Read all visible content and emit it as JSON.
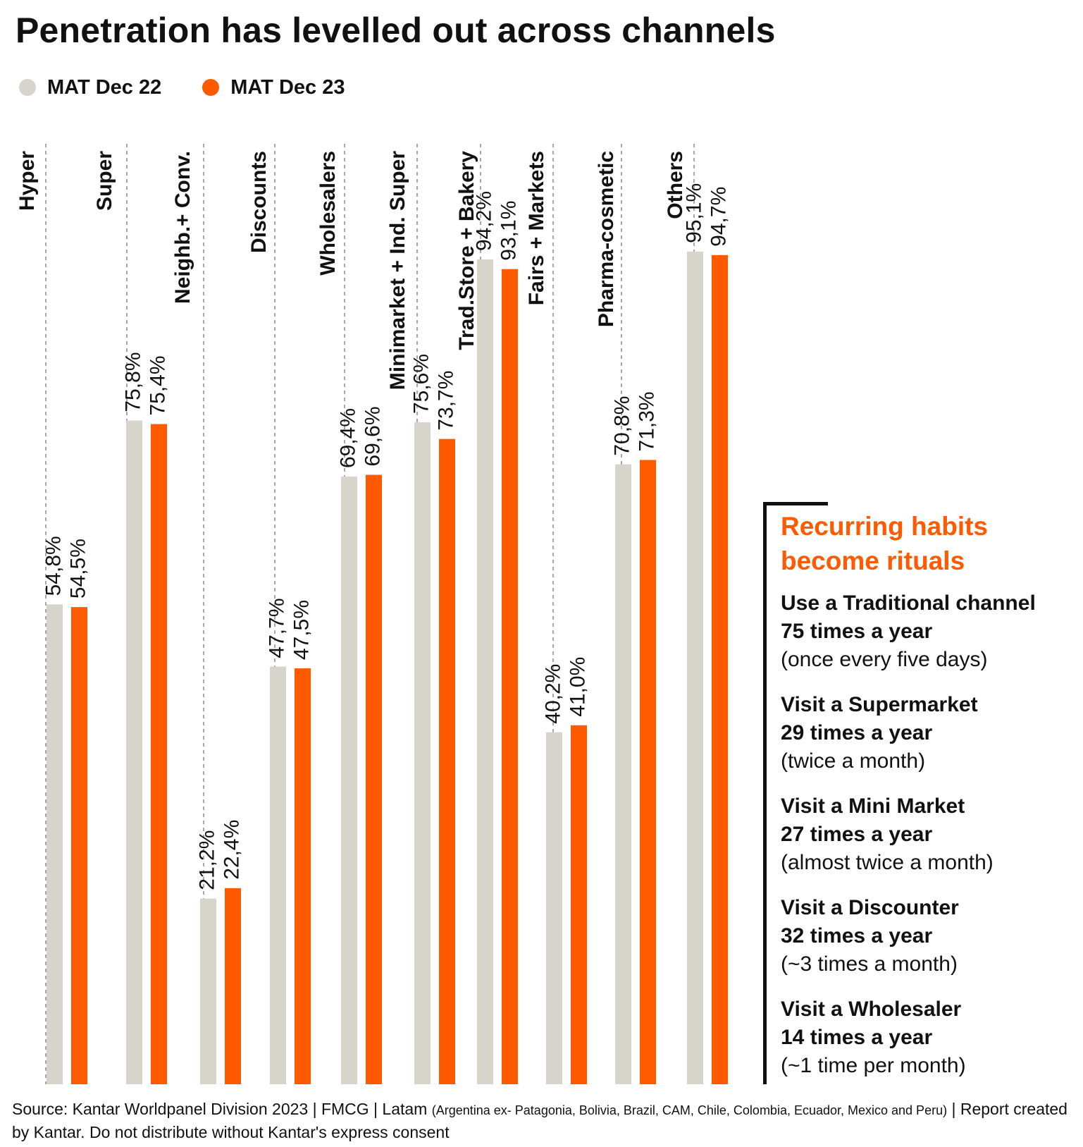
{
  "title": "Penetration has levelled out across channels",
  "legend": [
    {
      "label": "MAT Dec 22",
      "color": "#d6d4cb"
    },
    {
      "label": "MAT Dec 23",
      "color": "#ff5a00"
    }
  ],
  "chart_data": {
    "type": "bar",
    "categories": [
      "Hyper",
      "Super",
      "Neighb.+ Conv.",
      "Discounts",
      "Wholesalers",
      "Minimarket + Ind. Super",
      "Trad.Store + Bakery",
      "Fairs + Markets",
      "Pharma-cosmetic",
      "Others"
    ],
    "series": [
      {
        "name": "MAT Dec 22",
        "values": [
          54.8,
          75.8,
          21.2,
          47.7,
          69.4,
          75.6,
          94.2,
          40.2,
          70.8,
          95.1
        ],
        "labels": [
          "54,8%",
          "75,8%",
          "21,2%",
          "47,7%",
          "69,4%",
          "75,6%",
          "94,2%",
          "40,2%",
          "70,8%",
          "95,1%"
        ],
        "color": "#d6d4cb"
      },
      {
        "name": "MAT Dec 23",
        "values": [
          54.5,
          75.4,
          22.4,
          47.5,
          69.6,
          73.7,
          93.1,
          41.0,
          71.3,
          94.7
        ],
        "labels": [
          "54,5%",
          "75,4%",
          "22,4%",
          "47,5%",
          "69,6%",
          "73,7%",
          "93,1%",
          "41,0%",
          "71,3%",
          "94,7%"
        ],
        "color": "#ff5a00"
      }
    ],
    "ylim": [
      0,
      100
    ],
    "grid": false,
    "legend_position": "top-left"
  },
  "panel": {
    "heading": "Recurring habits become rituals",
    "items": [
      {
        "line1": "Use a Traditional channel",
        "line2": "75 times a year",
        "note": "(once every five days)"
      },
      {
        "line1": "Visit a Supermarket",
        "line2": "29 times a year",
        "note": "(twice a month)"
      },
      {
        "line1": "Visit a Mini Market",
        "line2": "27 times a year",
        "note": "(almost twice a month)"
      },
      {
        "line1": "Visit a Discounter",
        "line2": "32 times a year",
        "note": "(~3 times a month)"
      },
      {
        "line1": "Visit a Wholesaler",
        "line2": "14 times a year",
        "note": "(~1 time per month)"
      }
    ]
  },
  "source": {
    "main": "Source: Kantar Worldpanel Division 2023 | FMCG | Latam",
    "countries": "(Argentina ex- Patagonia, Bolivia, Brazil, CAM, Chile, Colombia, Ecuador, Mexico and Peru)",
    "tail": "| Report created by Kantar. Do not distribute without Kantar's express consent"
  }
}
